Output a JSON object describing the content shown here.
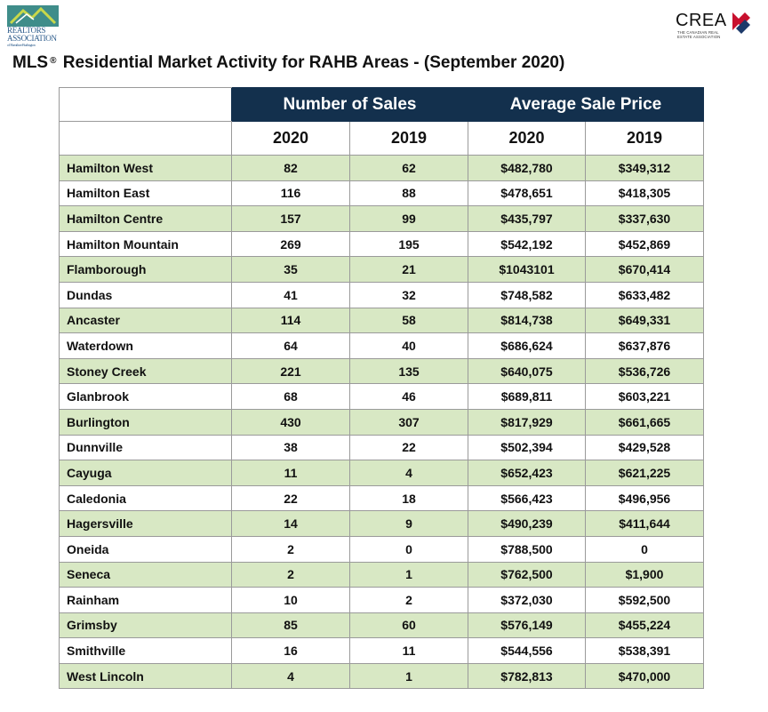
{
  "logos": {
    "left": {
      "name": "REALTORS ASSOCIATION of Hamilton-Burlington",
      "line1": "REALTORS",
      "line2": "ASSOCIATION",
      "line3": "of Hamilton-Burlington"
    },
    "right": {
      "word": "CREA",
      "sub1": "THE CANADIAN REAL",
      "sub2": "ESTATE ASSOCIATION"
    }
  },
  "title": {
    "prefix": "MLS",
    "mark": "®",
    "text": "Residential Market Activity for RAHB Areas - (September 2020)"
  },
  "table": {
    "groups": [
      "Number of Sales",
      "Average Sale Price"
    ],
    "years": [
      "2020",
      "2019",
      "2020",
      "2019"
    ],
    "rows": [
      {
        "area": "Hamilton West",
        "sales_2020": "82",
        "sales_2019": "62",
        "price_2020": "$482,780",
        "price_2019": "$349,312"
      },
      {
        "area": "Hamilton East",
        "sales_2020": "116",
        "sales_2019": "88",
        "price_2020": "$478,651",
        "price_2019": "$418,305"
      },
      {
        "area": "Hamilton Centre",
        "sales_2020": "157",
        "sales_2019": "99",
        "price_2020": "$435,797",
        "price_2019": "$337,630"
      },
      {
        "area": "Hamilton Mountain",
        "sales_2020": "269",
        "sales_2019": "195",
        "price_2020": "$542,192",
        "price_2019": "$452,869"
      },
      {
        "area": "Flamborough",
        "sales_2020": "35",
        "sales_2019": "21",
        "price_2020": "$1043101",
        "price_2019": "$670,414"
      },
      {
        "area": "Dundas",
        "sales_2020": "41",
        "sales_2019": "32",
        "price_2020": "$748,582",
        "price_2019": "$633,482"
      },
      {
        "area": "Ancaster",
        "sales_2020": "114",
        "sales_2019": "58",
        "price_2020": "$814,738",
        "price_2019": "$649,331"
      },
      {
        "area": "Waterdown",
        "sales_2020": "64",
        "sales_2019": "40",
        "price_2020": "$686,624",
        "price_2019": "$637,876"
      },
      {
        "area": "Stoney Creek",
        "sales_2020": "221",
        "sales_2019": "135",
        "price_2020": "$640,075",
        "price_2019": "$536,726"
      },
      {
        "area": "Glanbrook",
        "sales_2020": "68",
        "sales_2019": "46",
        "price_2020": "$689,811",
        "price_2019": "$603,221"
      },
      {
        "area": "Burlington",
        "sales_2020": "430",
        "sales_2019": "307",
        "price_2020": "$817,929",
        "price_2019": "$661,665"
      },
      {
        "area": "Dunnville",
        "sales_2020": "38",
        "sales_2019": "22",
        "price_2020": "$502,394",
        "price_2019": "$429,528"
      },
      {
        "area": "Cayuga",
        "sales_2020": "11",
        "sales_2019": "4",
        "price_2020": "$652,423",
        "price_2019": "$621,225"
      },
      {
        "area": "Caledonia",
        "sales_2020": "22",
        "sales_2019": "18",
        "price_2020": "$566,423",
        "price_2019": "$496,956"
      },
      {
        "area": "Hagersville",
        "sales_2020": "14",
        "sales_2019": "9",
        "price_2020": "$490,239",
        "price_2019": "$411,644"
      },
      {
        "area": "Oneida",
        "sales_2020": "2",
        "sales_2019": "0",
        "price_2020": "$788,500",
        "price_2019": "0"
      },
      {
        "area": "Seneca",
        "sales_2020": "2",
        "sales_2019": "1",
        "price_2020": "$762,500",
        "price_2019": "$1,900"
      },
      {
        "area": "Rainham",
        "sales_2020": "10",
        "sales_2019": "2",
        "price_2020": "$372,030",
        "price_2019": "$592,500"
      },
      {
        "area": "Grimsby",
        "sales_2020": "85",
        "sales_2019": "60",
        "price_2020": "$576,149",
        "price_2019": "$455,224"
      },
      {
        "area": "Smithville",
        "sales_2020": "16",
        "sales_2019": "11",
        "price_2020": "$544,556",
        "price_2019": "$538,391"
      },
      {
        "area": "West Lincoln",
        "sales_2020": "4",
        "sales_2019": "1",
        "price_2020": "$782,813",
        "price_2019": "$470,000"
      }
    ]
  },
  "colors": {
    "header": "#13304d",
    "shade": "#d8e8c4",
    "border": "#9a9a9a"
  }
}
